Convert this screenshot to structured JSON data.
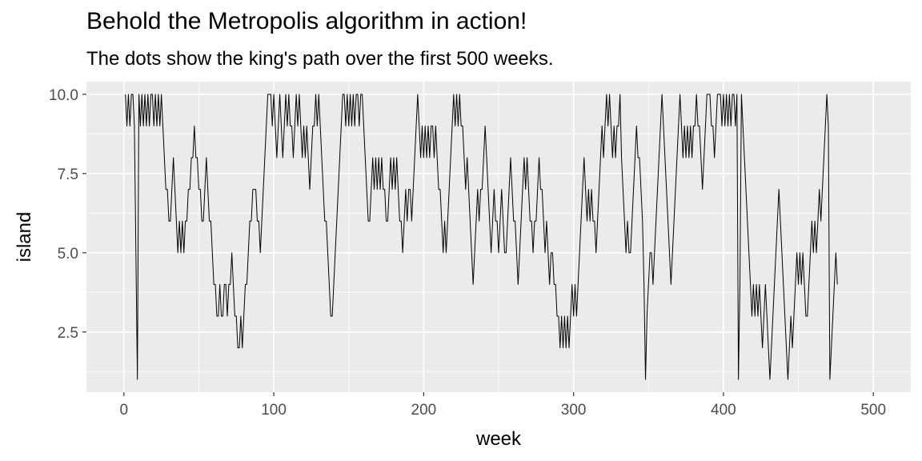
{
  "chart_data": {
    "type": "line",
    "title": "Behold the Metropolis algorithm in action!",
    "subtitle": "The dots show the king's path over the first 500 weeks.",
    "xlabel": "week",
    "ylabel": "island",
    "xlim": [
      -25,
      525
    ],
    "ylim": [
      0.6,
      10.4
    ],
    "xticks": [
      0,
      100,
      200,
      300,
      400,
      500
    ],
    "yticks": [
      2.5,
      5.0,
      7.5,
      10.0
    ],
    "xtick_labels": [
      "0",
      "100",
      "200",
      "300",
      "400",
      "500"
    ],
    "ytick_labels": [
      "2.5",
      "5.0",
      "7.5",
      "10.0"
    ],
    "grid": true,
    "colors": {
      "panel": "#ebebeb",
      "grid": "#ffffff",
      "line": "#000000",
      "tick": "#4d4d4d"
    },
    "series": [
      {
        "x_start": 1,
        "x_step": 1,
        "values": [
          10,
          9,
          10,
          9,
          10,
          10,
          9,
          5,
          1,
          10,
          9,
          10,
          9,
          10,
          9,
          10,
          9,
          10,
          10,
          9,
          10,
          9,
          10,
          9,
          10,
          9,
          8,
          7,
          7,
          6,
          6,
          7,
          8,
          7,
          6,
          5,
          6,
          5,
          6,
          5,
          6,
          6,
          7,
          7,
          8,
          8,
          9,
          8,
          8,
          7,
          7,
          6,
          6,
          7,
          8,
          7,
          6,
          6,
          5,
          4,
          4,
          3,
          3,
          4,
          3,
          3,
          4,
          4,
          3,
          4,
          4,
          5,
          4,
          3,
          3,
          2,
          2,
          3,
          2,
          3,
          4,
          4,
          5,
          6,
          6,
          7,
          7,
          7,
          6,
          6,
          5,
          6,
          7,
          8,
          9,
          10,
          10,
          10,
          9,
          10,
          9,
          8,
          9,
          10,
          9,
          8,
          9,
          10,
          9,
          10,
          9,
          9,
          8,
          9,
          10,
          9,
          10,
          9,
          8,
          9,
          8,
          9,
          8,
          7,
          8,
          9,
          9,
          10,
          9,
          10,
          9,
          8,
          7,
          6,
          6,
          5,
          4,
          3,
          3,
          4,
          5,
          6,
          7,
          8,
          9,
          10,
          10,
          9,
          10,
          9,
          10,
          9,
          10,
          9,
          10,
          10,
          9,
          10,
          10,
          9,
          8,
          7,
          6,
          6,
          7,
          8,
          7,
          8,
          7,
          8,
          7,
          8,
          7,
          7,
          6,
          6,
          7,
          8,
          7,
          8,
          7,
          8,
          7,
          6,
          6,
          5,
          6,
          7,
          6,
          7,
          7,
          6,
          7,
          8,
          9,
          10,
          9,
          8,
          9,
          8,
          9,
          8,
          9,
          8,
          9,
          9,
          8,
          9,
          8,
          7,
          7,
          6,
          5,
          6,
          5,
          6,
          7,
          8,
          9,
          10,
          9,
          10,
          9,
          10,
          9,
          9,
          8,
          7,
          8,
          7,
          6,
          5,
          4,
          5,
          6,
          7,
          6,
          7,
          7,
          8,
          9,
          8,
          7,
          6,
          5,
          6,
          7,
          6,
          6,
          5,
          6,
          7,
          6,
          5,
          5,
          6,
          7,
          8,
          7,
          6,
          6,
          5,
          4,
          5,
          6,
          7,
          8,
          7,
          8,
          7,
          6,
          6,
          5,
          6,
          6,
          7,
          8,
          7,
          7,
          6,
          5,
          6,
          5,
          4,
          5,
          5,
          4,
          4,
          3,
          3,
          2,
          3,
          2,
          3,
          2,
          3,
          2,
          3,
          4,
          3,
          4,
          3,
          4,
          5,
          6,
          7,
          8,
          7,
          6,
          7,
          6,
          7,
          6,
          6,
          5,
          6,
          7,
          8,
          9,
          8,
          9,
          10,
          9,
          10,
          9,
          8,
          9,
          8,
          9,
          9,
          10,
          8,
          7,
          6,
          5,
          6,
          5,
          5,
          6,
          7,
          8,
          9,
          8,
          8,
          7,
          6,
          4,
          1,
          3,
          4,
          5,
          5,
          4,
          5,
          6,
          7,
          8,
          9,
          10,
          9,
          8,
          7,
          6,
          5,
          4,
          5,
          6,
          7,
          8,
          9,
          10,
          9,
          8,
          9,
          8,
          9,
          8,
          9,
          8,
          9,
          9,
          10,
          9,
          9,
          8,
          7,
          8,
          9,
          10,
          10,
          10,
          9,
          9,
          8,
          9,
          10,
          10,
          10,
          9,
          10,
          9,
          10,
          9,
          10,
          9,
          10,
          10,
          9,
          10,
          1,
          4,
          10,
          9,
          8,
          7,
          6,
          5,
          4,
          3,
          4,
          3,
          4,
          3,
          4,
          3,
          2,
          3,
          4,
          3,
          2,
          1,
          2,
          3,
          4,
          5,
          6,
          7,
          6,
          5,
          4,
          3,
          2,
          1,
          2,
          3,
          2,
          3,
          4,
          5,
          4,
          5,
          4,
          5,
          4,
          3,
          3,
          4,
          5,
          6,
          5,
          6,
          5,
          6,
          7,
          6,
          7,
          8,
          9,
          10,
          9,
          1,
          2,
          3,
          4,
          5,
          4
        ]
      }
    ]
  }
}
